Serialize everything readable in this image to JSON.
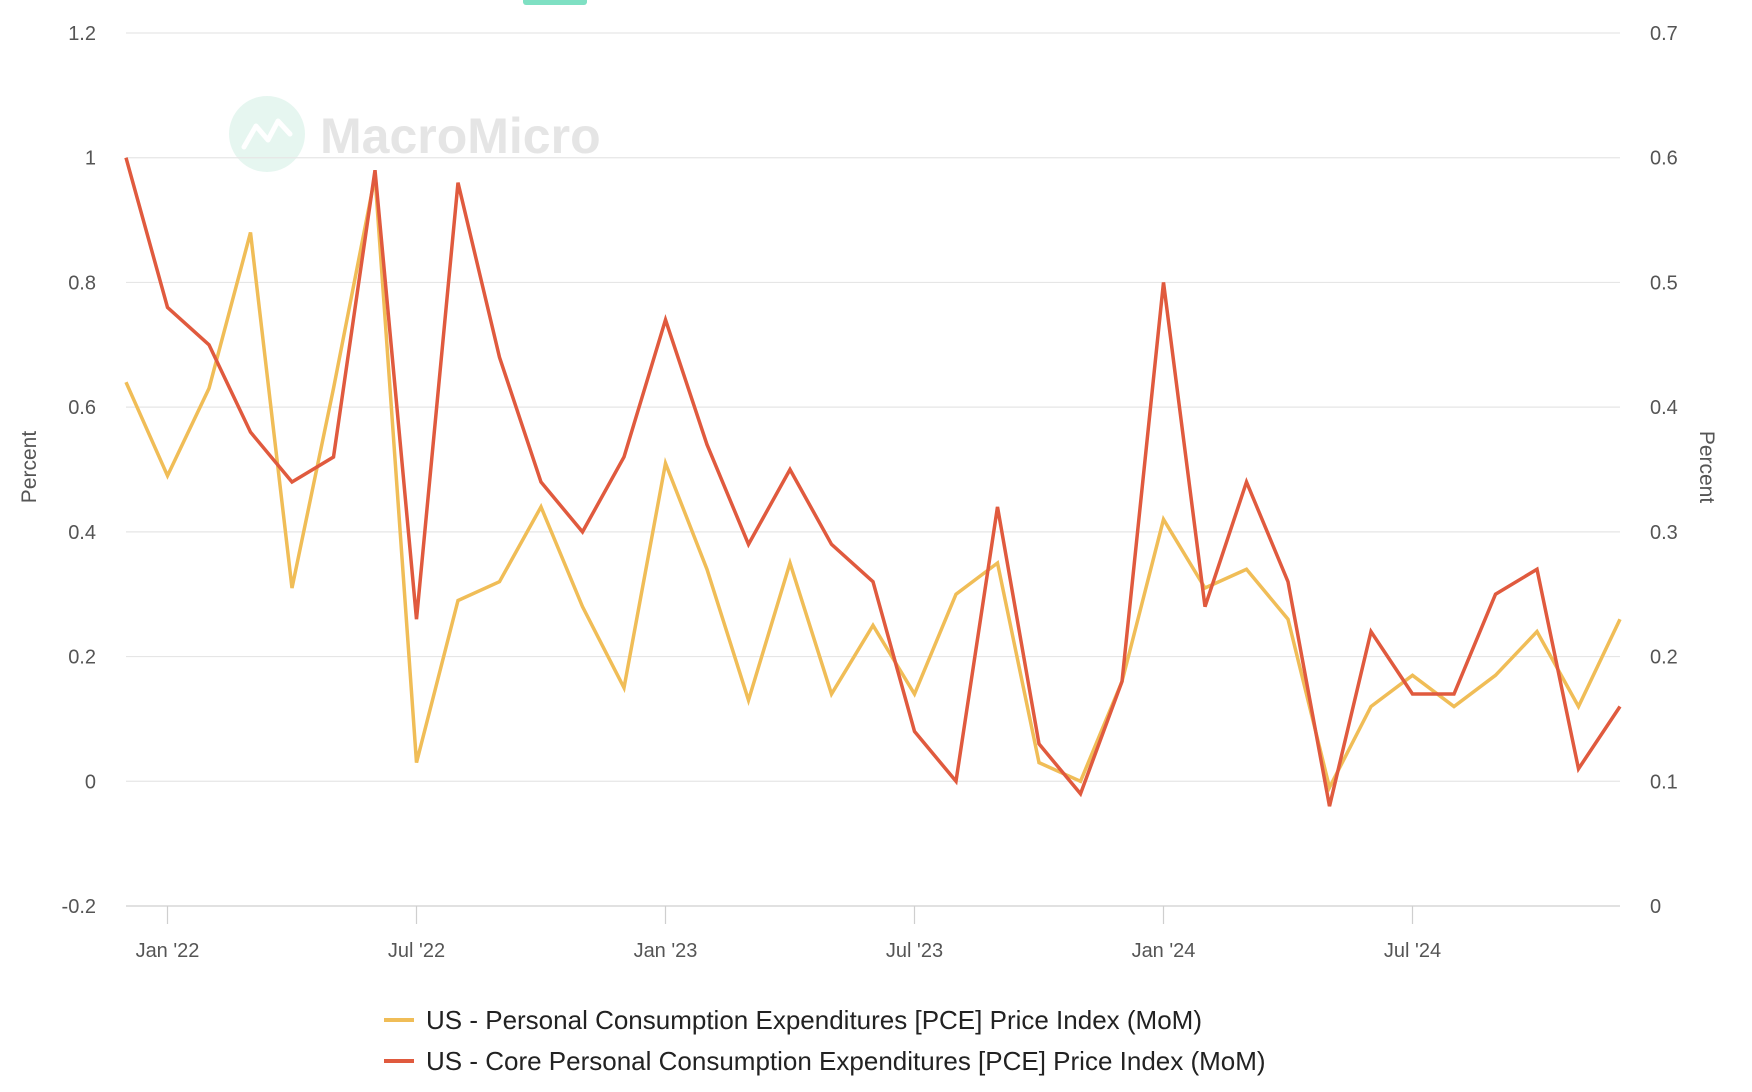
{
  "watermark": {
    "text": "MacroMicro"
  },
  "colors": {
    "pce": "#f0bd57",
    "core": "#e05a3e",
    "grid": "#e6e6e6",
    "axis": "#cfcfcf",
    "tick_text": "#555555",
    "badge": "#7fe0c3"
  },
  "chart_data": {
    "type": "line",
    "x_tick_labels": [
      "Jan '22",
      "Jul '22",
      "Jan '23",
      "Jul '23",
      "Jan '24",
      "Jul '24"
    ],
    "x": [
      "2021-12",
      "2022-01",
      "2022-02",
      "2022-03",
      "2022-04",
      "2022-05",
      "2022-06",
      "2022-07",
      "2022-08",
      "2022-09",
      "2022-10",
      "2022-11",
      "2022-12",
      "2023-01",
      "2023-02",
      "2023-03",
      "2023-04",
      "2023-05",
      "2023-06",
      "2023-07",
      "2023-08",
      "2023-09",
      "2023-10",
      "2023-11",
      "2023-12",
      "2024-01",
      "2024-02",
      "2024-03",
      "2024-04",
      "2024-05",
      "2024-06",
      "2024-07",
      "2024-08",
      "2024-09",
      "2024-10",
      "2024-11",
      "2024-12"
    ],
    "y_left": {
      "label": "Percent",
      "min": -0.2,
      "max": 1.2,
      "ticks": [
        -0.2,
        0,
        0.2,
        0.4,
        0.6,
        0.8,
        1,
        1.2
      ],
      "tick_labels": [
        "-0.2",
        "0",
        "0.2",
        "0.4",
        "0.6",
        "0.8",
        "1",
        "1.2"
      ]
    },
    "y_right": {
      "label": "Percent",
      "min": 0,
      "max": 0.7,
      "ticks": [
        0,
        0.1,
        0.2,
        0.3,
        0.4,
        0.5,
        0.6,
        0.7
      ],
      "tick_labels": [
        "0",
        "0.1",
        "0.2",
        "0.3",
        "0.4",
        "0.5",
        "0.6",
        "0.7"
      ]
    },
    "series": [
      {
        "name": "US - Personal Consumption Expenditures [PCE] Price Index (MoM)",
        "axis": "left",
        "color": "#f0bd57",
        "values": [
          0.64,
          0.49,
          0.63,
          0.88,
          0.31,
          0.63,
          0.97,
          0.03,
          0.29,
          0.32,
          0.44,
          0.28,
          0.15,
          0.51,
          0.34,
          0.13,
          0.35,
          0.14,
          0.25,
          0.14,
          0.3,
          0.35,
          0.03,
          0.0,
          0.16,
          0.42,
          0.31,
          0.34,
          0.26,
          -0.01,
          0.12,
          0.17,
          0.12,
          0.17,
          0.24,
          0.12,
          0.26
        ]
      },
      {
        "name": "US - Core Personal Consumption Expenditures [PCE] Price Index (MoM)",
        "axis": "right",
        "color": "#e05a3e",
        "values": [
          0.6,
          0.48,
          0.45,
          0.38,
          0.34,
          0.36,
          0.59,
          0.23,
          0.58,
          0.44,
          0.34,
          0.3,
          0.36,
          0.47,
          0.37,
          0.29,
          0.35,
          0.29,
          0.26,
          0.14,
          0.1,
          0.32,
          0.13,
          0.09,
          0.18,
          0.5,
          0.24,
          0.34,
          0.26,
          0.08,
          0.22,
          0.17,
          0.17,
          0.25,
          0.27,
          0.11,
          0.16
        ]
      }
    ],
    "grid": true,
    "legend_position": "bottom"
  }
}
